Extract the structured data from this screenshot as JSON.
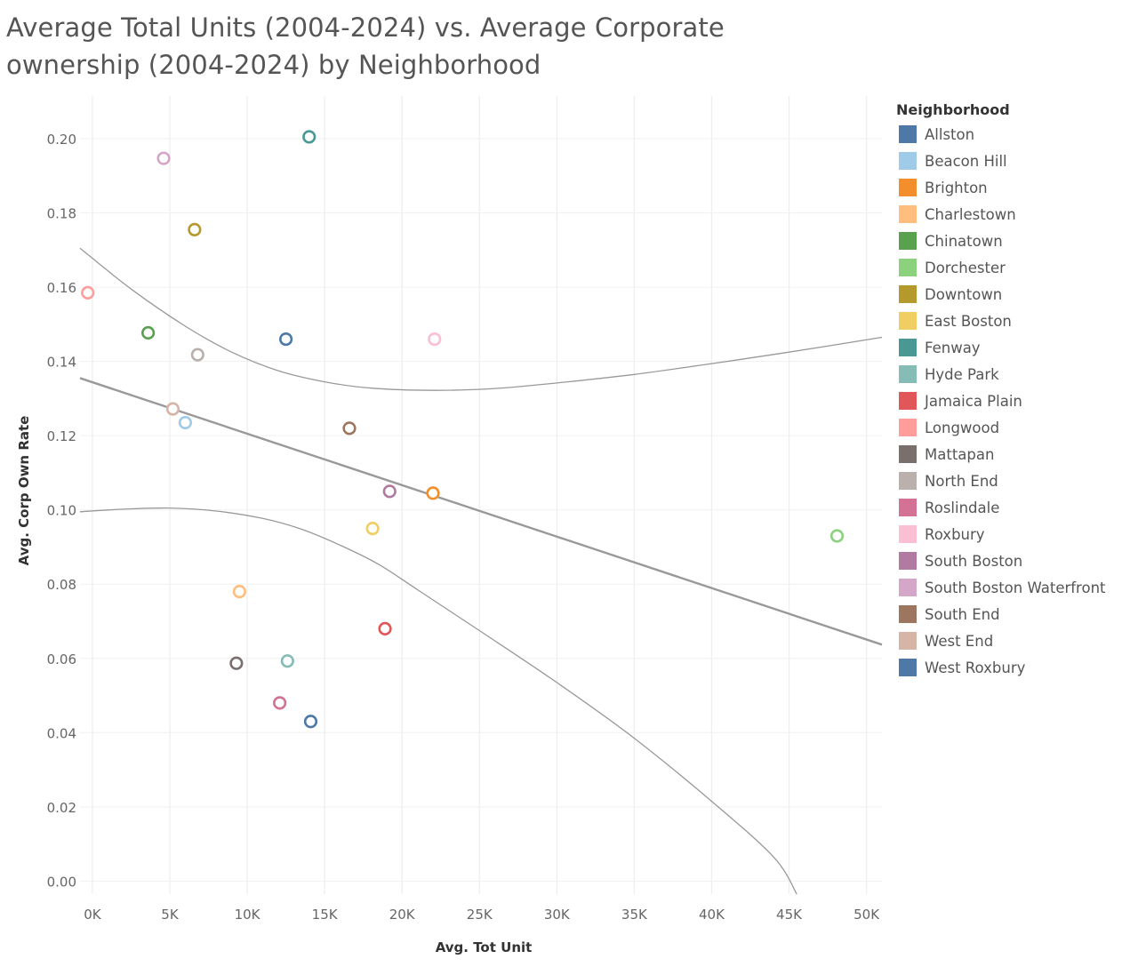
{
  "title": "Average Total Units (2004-2024) vs. Average Corporate ownership (2004-2024) by Neighborhood",
  "legend": {
    "title": "Neighborhood"
  },
  "chart_data": {
    "type": "scatter",
    "title": "Average Total Units (2004-2024) vs. Average Corporate ownership (2004-2024) by Neighborhood",
    "xlabel": "Avg. Tot Unit",
    "ylabel": "Avg. Corp Own Rate",
    "xlim": [
      -800,
      51000
    ],
    "ylim": [
      -0.0035,
      0.2115
    ],
    "x_ticks": [
      0,
      5000,
      10000,
      15000,
      20000,
      25000,
      30000,
      35000,
      40000,
      45000,
      50000
    ],
    "x_tick_labels": [
      "0K",
      "5K",
      "10K",
      "15K",
      "20K",
      "25K",
      "30K",
      "35K",
      "40K",
      "45K",
      "50K"
    ],
    "y_ticks": [
      0,
      0.02,
      0.04,
      0.06,
      0.08,
      0.1,
      0.12,
      0.14,
      0.16,
      0.18,
      0.2
    ],
    "y_tick_labels": [
      "0.00",
      "0.02",
      "0.04",
      "0.06",
      "0.08",
      "0.10",
      "0.12",
      "0.14",
      "0.16",
      "0.18",
      "0.20"
    ],
    "grid": true,
    "marker": "open-circle",
    "legend_position": "right",
    "series": [
      {
        "name": "Allston",
        "color": "#4e79a7",
        "x": 12500,
        "y": 0.146
      },
      {
        "name": "Beacon Hill",
        "color": "#a0cbe8",
        "x": 6000,
        "y": 0.1235
      },
      {
        "name": "Brighton",
        "color": "#f28e2b",
        "x": 22000,
        "y": 0.1045
      },
      {
        "name": "Charlestown",
        "color": "#ffbe7d",
        "x": 9500,
        "y": 0.078
      },
      {
        "name": "Chinatown",
        "color": "#59a14f",
        "x": 3600,
        "y": 0.1477
      },
      {
        "name": "Dorchester",
        "color": "#8cd17d",
        "x": 48100,
        "y": 0.093
      },
      {
        "name": "Downtown",
        "color": "#b6992d",
        "x": 6600,
        "y": 0.1755
      },
      {
        "name": "East Boston",
        "color": "#f1ce63",
        "x": 18100,
        "y": 0.095
      },
      {
        "name": "Fenway",
        "color": "#499894",
        "x": 14000,
        "y": 0.2005
      },
      {
        "name": "Hyde Park",
        "color": "#86bcb6",
        "x": 12600,
        "y": 0.0593
      },
      {
        "name": "Jamaica Plain",
        "color": "#e15759",
        "x": 18900,
        "y": 0.068
      },
      {
        "name": "Longwood",
        "color": "#ff9d9a",
        "x": -300,
        "y": 0.1585
      },
      {
        "name": "Mattapan",
        "color": "#79706e",
        "x": 9300,
        "y": 0.0587
      },
      {
        "name": "North End",
        "color": "#bab0ac",
        "x": 6800,
        "y": 0.1418
      },
      {
        "name": "Roslindale",
        "color": "#d37295",
        "x": 12100,
        "y": 0.048
      },
      {
        "name": "Roxbury",
        "color": "#fabfd2",
        "x": 22100,
        "y": 0.146
      },
      {
        "name": "South Boston",
        "color": "#b07aa1",
        "x": 19200,
        "y": 0.105
      },
      {
        "name": "South Boston Waterfront",
        "color": "#d4a6c8",
        "x": 4600,
        "y": 0.1947
      },
      {
        "name": "South End",
        "color": "#9d7660",
        "x": 16600,
        "y": 0.122
      },
      {
        "name": "West End",
        "color": "#d7b5a6",
        "x": 5200,
        "y": 0.1272
      },
      {
        "name": "West Roxbury",
        "color": "#4e79a7",
        "x": 14100,
        "y": 0.043
      }
    ],
    "trend_line": {
      "color": "#999999",
      "points": [
        [
          -800,
          0.1355
        ],
        [
          51000,
          0.0637
        ]
      ]
    },
    "confidence_band": {
      "color": "#999999",
      "upper": [
        [
          -800,
          0.1705
        ],
        [
          2500,
          0.1595
        ],
        [
          6000,
          0.1495
        ],
        [
          9000,
          0.1425
        ],
        [
          12000,
          0.1375
        ],
        [
          15000,
          0.1345
        ],
        [
          18000,
          0.1328
        ],
        [
          22000,
          0.1322
        ],
        [
          26000,
          0.1327
        ],
        [
          30000,
          0.1342
        ],
        [
          35000,
          0.1365
        ],
        [
          40000,
          0.1394
        ],
        [
          45000,
          0.1425
        ],
        [
          51000,
          0.1465
        ]
      ],
      "lower": [
        [
          -800,
          0.0995
        ],
        [
          2000,
          0.1002
        ],
        [
          5000,
          0.1005
        ],
        [
          8000,
          0.0997
        ],
        [
          11000,
          0.0977
        ],
        [
          13500,
          0.0948
        ],
        [
          16000,
          0.0905
        ],
        [
          18500,
          0.0853
        ],
        [
          21000,
          0.0785
        ],
        [
          25000,
          0.0675
        ],
        [
          30000,
          0.0535
        ],
        [
          35000,
          0.0385
        ],
        [
          40000,
          0.0215
        ],
        [
          44000,
          0.0065
        ],
        [
          45500,
          -0.0035
        ]
      ]
    }
  }
}
